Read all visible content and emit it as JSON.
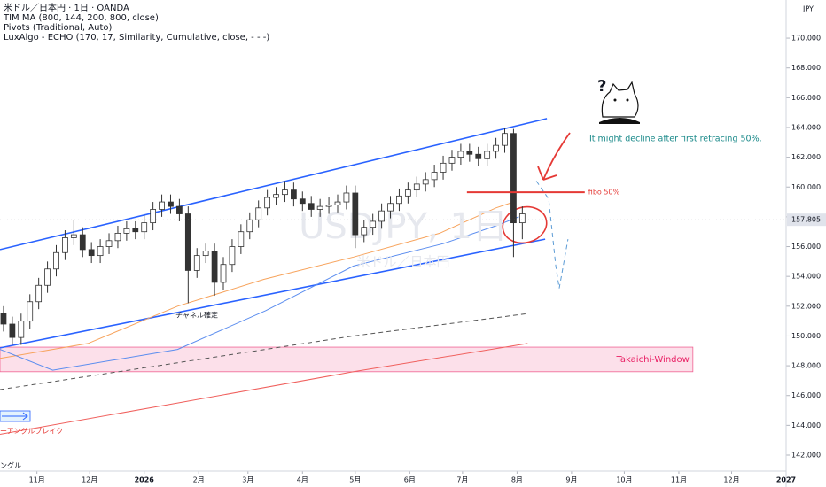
{
  "chart_data": {
    "type": "candlestick",
    "header": [
      "米ドル／日本円 · 1日 · OANDA",
      "TIM MA (800, 144, 200, 800, close)",
      "Pivots (Traditional, Auto)",
      "LuxAlgo - ECHO (170, 17, Similarity, Cumulative, close, - - -)"
    ],
    "currency": "JPY",
    "watermark": [
      "USDJPY, 1日",
      "米ドル／日本円"
    ],
    "xlim": [
      10,
      457
    ],
    "xticks": [
      {
        "value": 31,
        "label": "11月"
      },
      {
        "value": 61,
        "label": "12月"
      },
      92,
      {
        "value": 123,
        "label": "2月"
      },
      {
        "value": 151,
        "label": "3月"
      },
      {
        "value": 182,
        "label": "4月"
      },
      {
        "value": 212,
        "label": "5月"
      },
      {
        "value": 243,
        "label": "6月"
      },
      {
        "value": 273,
        "label": "7月"
      },
      {
        "value": 304,
        "label": "8月"
      },
      {
        "value": 335,
        "label": "9月"
      },
      {
        "value": 365,
        "label": "10月"
      },
      {
        "value": 396,
        "label": "11月"
      },
      {
        "value": 426,
        "label": "12月"
      },
      457
    ],
    "xtick_year_labels": [
      "2026",
      "2027"
    ],
    "ylim": [
      140.93,
      172.56
    ],
    "yticks": [
      {
        "value": 142,
        "label": "142.000"
      },
      {
        "value": 144,
        "label": "144.000"
      },
      {
        "value": 146,
        "label": "146.000"
      },
      {
        "value": 148,
        "label": "148.000"
      },
      {
        "value": 150,
        "label": "150.000"
      },
      {
        "value": 152,
        "label": "152.000"
      },
      {
        "value": 154,
        "label": "154.000"
      },
      {
        "value": 156,
        "label": "156.000"
      },
      {
        "value": 158,
        "label": "158.000"
      },
      {
        "value": 160,
        "label": "160.000"
      },
      {
        "value": 162,
        "label": "162.000"
      },
      {
        "value": 164,
        "label": "164.000"
      },
      {
        "value": 166,
        "label": "166.000"
      },
      {
        "value": 168,
        "label": "168.000"
      },
      {
        "value": 170,
        "label": "170.000"
      }
    ],
    "last_price": 157.805,
    "up_color": "#ffffff",
    "down_color": "#333333",
    "candles": {
      "x": [
        12,
        17,
        22,
        27,
        32,
        37,
        42,
        47,
        52,
        57,
        62,
        67,
        72,
        77,
        82,
        87,
        92,
        97,
        102,
        107,
        112,
        117,
        122,
        127,
        132,
        137,
        142,
        147,
        152,
        157,
        162,
        167,
        172,
        177,
        182,
        187,
        192,
        197,
        202,
        207,
        212,
        217,
        222,
        227,
        232,
        237,
        242,
        247,
        252,
        257,
        262,
        267,
        272,
        277,
        282,
        287,
        292,
        297,
        302,
        307
      ],
      "open": [
        151.5,
        150.8,
        149.9,
        151.0,
        152.3,
        153.4,
        154.5,
        155.6,
        156.6,
        156.8,
        155.8,
        155.4,
        156.0,
        156.4,
        156.9,
        157.2,
        157.0,
        157.6,
        158.5,
        159.0,
        158.7,
        158.2,
        154.4,
        155.4,
        155.7,
        153.6,
        154.8,
        156.0,
        157.0,
        157.8,
        158.6,
        159.3,
        159.5,
        159.8,
        159.2,
        158.9,
        158.5,
        158.7,
        158.8,
        159.0,
        159.6,
        156.8,
        157.3,
        157.7,
        158.4,
        158.9,
        159.4,
        159.8,
        160.2,
        160.5,
        161.0,
        161.6,
        162.0,
        162.4,
        162.2,
        161.9,
        162.4,
        162.8,
        163.6,
        157.6
      ],
      "high": [
        152.0,
        151.3,
        151.5,
        152.8,
        153.9,
        155.0,
        156.1,
        157.1,
        157.8,
        157.3,
        156.3,
        156.5,
        156.9,
        157.4,
        157.7,
        157.7,
        158.1,
        159.0,
        159.5,
        159.5,
        159.2,
        158.7,
        155.9,
        156.2,
        156.2,
        155.3,
        156.5,
        157.5,
        158.3,
        159.1,
        159.8,
        160.0,
        160.4,
        160.3,
        159.7,
        159.4,
        159.2,
        159.3,
        159.5,
        160.1,
        160.1,
        157.8,
        158.2,
        158.9,
        159.4,
        159.9,
        160.3,
        160.7,
        161.0,
        161.5,
        162.1,
        162.5,
        162.9,
        162.9,
        162.7,
        162.9,
        163.3,
        164.0,
        163.9,
        158.7
      ],
      "low": [
        150.3,
        149.4,
        149.4,
        150.5,
        151.8,
        152.9,
        154.0,
        155.1,
        156.1,
        155.3,
        154.9,
        154.9,
        155.5,
        155.9,
        156.4,
        156.5,
        156.5,
        157.1,
        158.0,
        158.2,
        157.7,
        152.2,
        153.9,
        154.9,
        152.7,
        153.1,
        154.3,
        155.5,
        156.5,
        157.3,
        158.1,
        158.8,
        159.0,
        158.7,
        158.4,
        158.0,
        158.0,
        158.2,
        158.3,
        158.5,
        155.9,
        156.3,
        156.8,
        157.2,
        157.9,
        158.4,
        158.9,
        159.3,
        159.7,
        160.0,
        160.5,
        161.1,
        161.5,
        161.7,
        161.4,
        161.4,
        161.9,
        162.3,
        155.3,
        156.5
      ],
      "close": [
        150.8,
        149.9,
        151.0,
        152.3,
        153.4,
        154.5,
        155.6,
        156.6,
        156.8,
        155.8,
        155.4,
        156.0,
        156.4,
        156.9,
        157.2,
        157.0,
        157.6,
        158.5,
        159.0,
        158.7,
        158.2,
        154.4,
        155.4,
        155.7,
        153.6,
        154.8,
        156.0,
        157.0,
        157.8,
        158.6,
        159.3,
        159.5,
        159.8,
        159.2,
        158.9,
        158.5,
        158.7,
        158.8,
        159.0,
        159.6,
        156.8,
        157.3,
        157.7,
        158.4,
        158.9,
        159.4,
        159.8,
        160.2,
        160.5,
        161.0,
        161.6,
        162.0,
        162.4,
        162.2,
        161.9,
        162.4,
        162.8,
        163.6,
        157.6,
        158.2
      ]
    },
    "lines": [
      {
        "color": "#2962ff",
        "width": 1.6,
        "dashed": false,
        "x": [
          10,
          321
        ],
        "y": [
          155.8,
          164.6
        ]
      },
      {
        "color": "#2962ff",
        "width": 1.6,
        "dashed": false,
        "x": [
          10,
          320
        ],
        "y": [
          149.2,
          156.5
        ]
      },
      {
        "color": "#f7a35c",
        "width": 1,
        "dashed": false,
        "x": [
          10,
          60,
          111,
          160,
          211,
          260,
          292,
          302
        ],
        "y": [
          148.5,
          149.5,
          152.0,
          153.8,
          155.3,
          156.9,
          158.6,
          159.0
        ]
      },
      {
        "color": "#5b8def",
        "width": 1,
        "dashed": false,
        "x": [
          10,
          40,
          111,
          161,
          211,
          262,
          292,
          305
        ],
        "y": [
          149.1,
          147.7,
          149.1,
          151.7,
          154.7,
          156.2,
          157.4,
          158.0
        ]
      },
      {
        "color": "#555555",
        "width": 1,
        "dashed": true,
        "x": [
          10,
          111,
          211,
          310
        ],
        "y": [
          146.4,
          148.2,
          150.0,
          151.5
        ]
      },
      {
        "color": "#f0605d",
        "width": 1,
        "dashed": false,
        "x": [
          10,
          111,
          211,
          310
        ],
        "y": [
          143.4,
          145.5,
          147.6,
          149.5
        ]
      },
      {
        "color": "#5b9bd5",
        "width": 1,
        "dashed": true,
        "x": [
          315,
          322,
          326,
          328,
          333
        ],
        "y": [
          160.4,
          159.2,
          154.7,
          153.2,
          156.5
        ]
      }
    ],
    "zone": {
      "label": "Takaichi-Window",
      "x": [
        10,
        404
      ],
      "y": [
        147.6,
        149.25
      ],
      "color": "#f8bbd0"
    },
    "fibo": {
      "label": "fibo 50%",
      "x": [
        275.5,
        342.5
      ],
      "y": 159.65,
      "color": "#e53935"
    },
    "annotations": [
      "It might decline after first retracing 50%.",
      "チャネル確定",
      "ーアングルブレイク",
      "ングル",
      "?"
    ]
  }
}
